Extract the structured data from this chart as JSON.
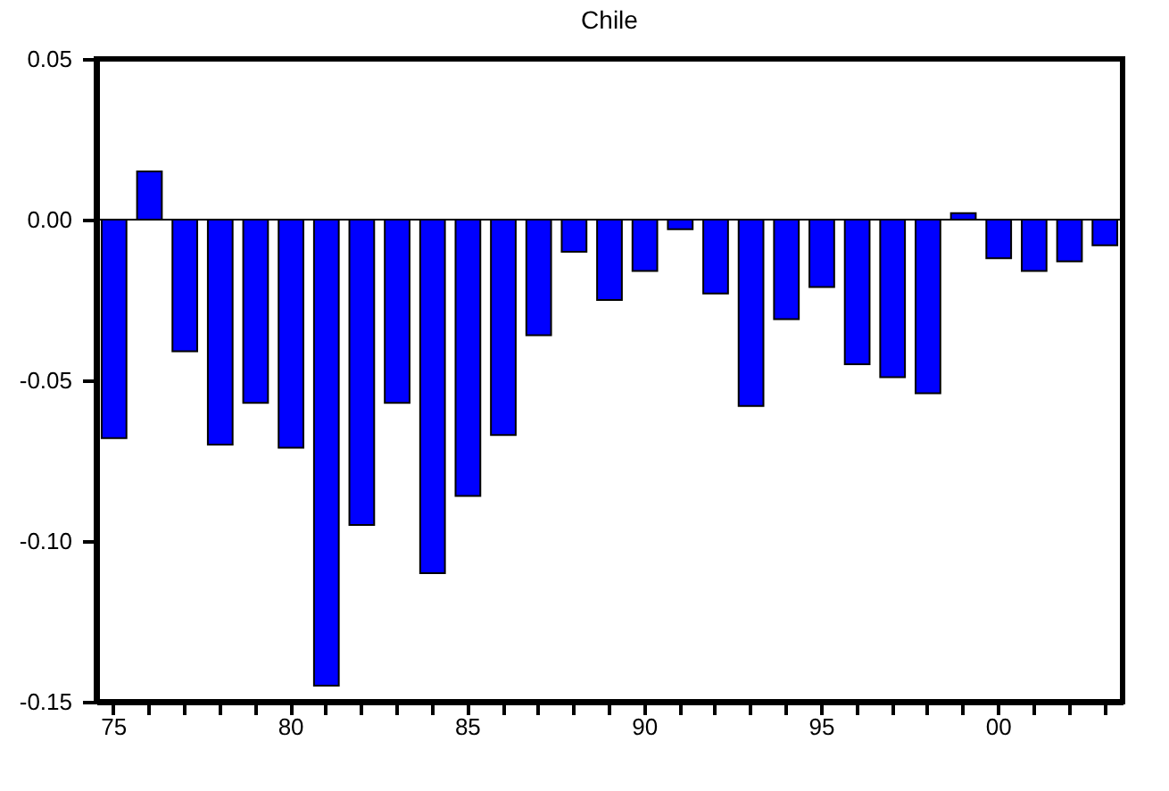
{
  "chart_data": {
    "type": "bar",
    "title": "Chile",
    "categories": [
      "75",
      null,
      null,
      null,
      null,
      "80",
      null,
      null,
      null,
      null,
      "85",
      null,
      null,
      null,
      null,
      "90",
      null,
      null,
      null,
      null,
      "95",
      null,
      null,
      null,
      null,
      "00",
      null,
      null,
      null
    ],
    "values": [
      -0.068,
      0.015,
      -0.041,
      -0.07,
      -0.057,
      -0.071,
      -0.145,
      -0.095,
      -0.057,
      -0.11,
      -0.086,
      -0.067,
      -0.036,
      -0.01,
      -0.025,
      -0.016,
      -0.003,
      -0.023,
      -0.058,
      -0.031,
      -0.021,
      -0.045,
      -0.049,
      -0.054,
      0.002,
      -0.012,
      -0.016,
      -0.013,
      -0.008
    ],
    "color": "#0000ff",
    "ylim": [
      -0.15,
      0.05
    ],
    "yticks": [
      {
        "value": 0.05,
        "label": "0.05"
      },
      {
        "value": 0,
        "label": "0.00"
      },
      {
        "value": -0.05,
        "label": "-0.05"
      },
      {
        "value": -0.1,
        "label": "-0.10"
      },
      {
        "value": -0.15,
        "label": "-0.15"
      }
    ],
    "ref_lines": [
      {
        "axis": "y",
        "value": 0
      }
    ],
    "grid": false
  }
}
